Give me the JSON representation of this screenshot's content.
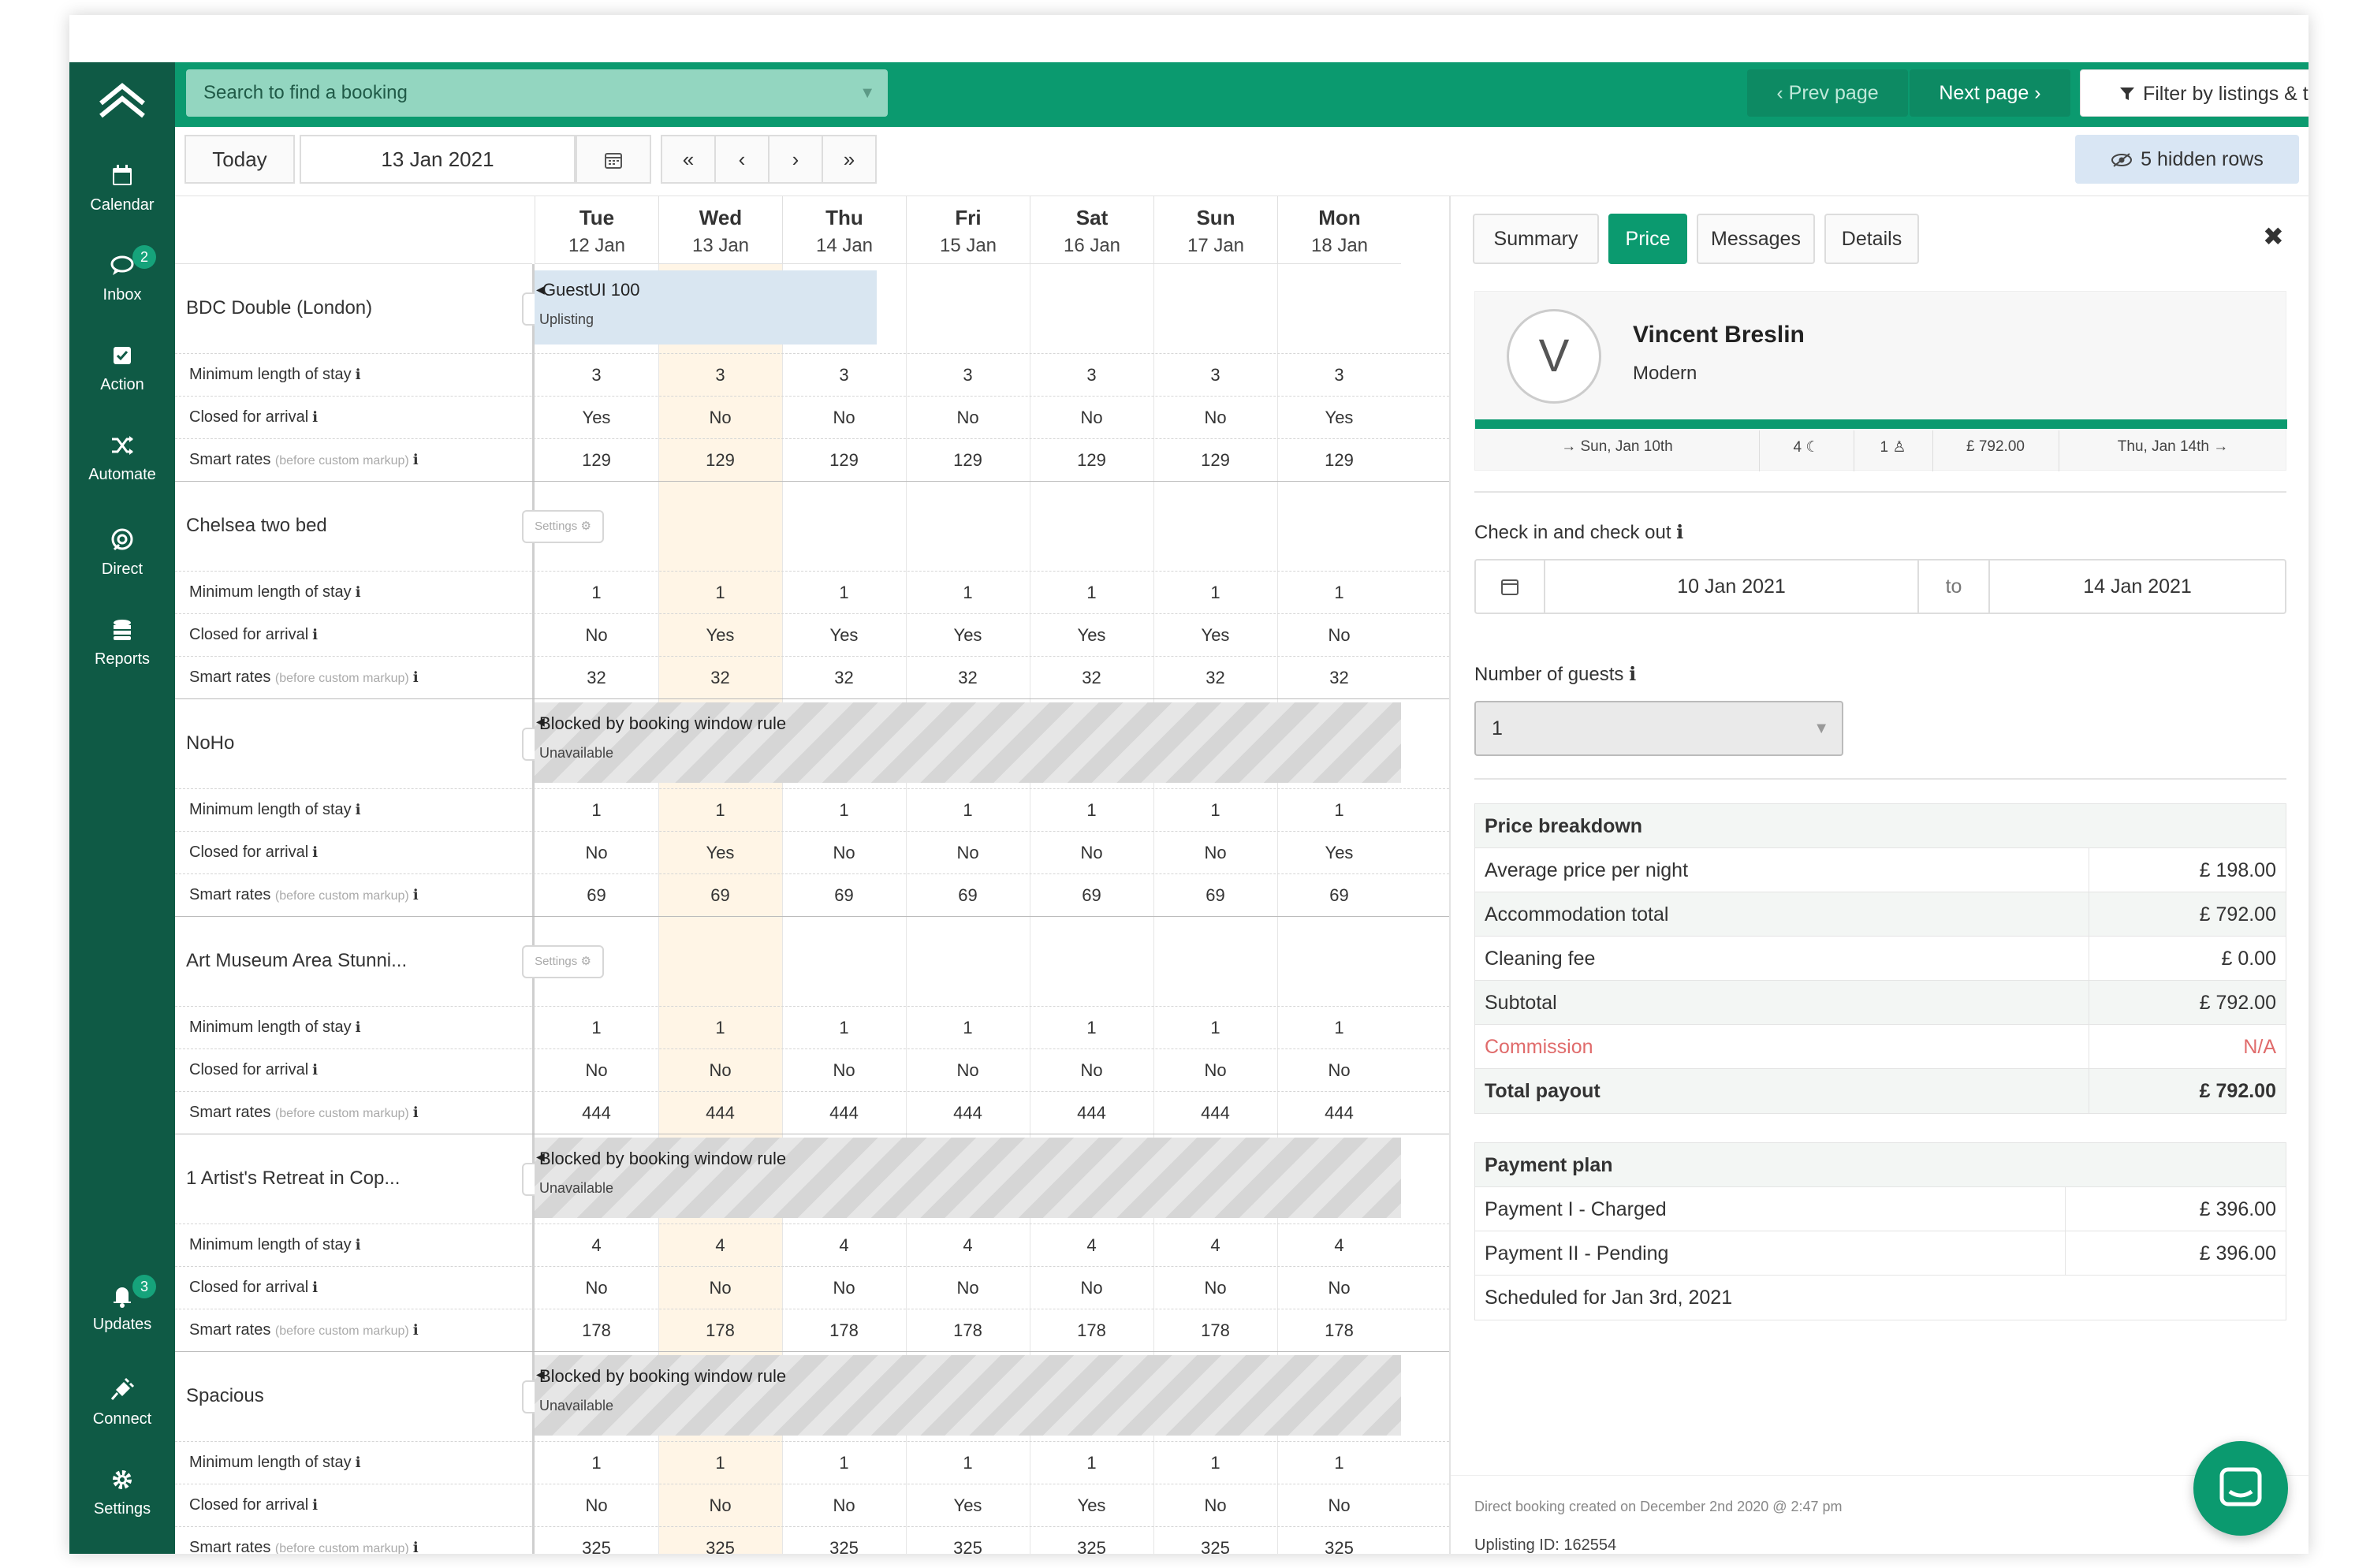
{
  "sidebar": {
    "items": [
      {
        "label": "Calendar",
        "icon": "calendar-icon"
      },
      {
        "label": "Inbox",
        "icon": "chat-icon",
        "badge": "2"
      },
      {
        "label": "Action",
        "icon": "checkbox-icon"
      },
      {
        "label": "Automate",
        "icon": "shuffle-icon"
      },
      {
        "label": "Direct",
        "icon": "direct-icon"
      },
      {
        "label": "Reports",
        "icon": "database-icon"
      },
      {
        "label": "Updates",
        "icon": "bell-icon",
        "badge": "3"
      },
      {
        "label": "Connect",
        "icon": "plug-icon"
      },
      {
        "label": "Settings",
        "icon": "gear-icon"
      }
    ]
  },
  "header": {
    "search_placeholder": "Search to find a booking",
    "prev_label": "Prev page",
    "next_label": "Next page",
    "filter_label": "Filter by listings & tags"
  },
  "toolbar": {
    "today_label": "Today",
    "date_value": "13 Jan 2021",
    "nav": [
      "«",
      "‹",
      "›",
      "»"
    ],
    "hidden_rows_label": "5 hidden rows",
    "more_label": "•••"
  },
  "calendar": {
    "days": [
      {
        "name": "Tue",
        "date": "12 Jan"
      },
      {
        "name": "Wed",
        "date": "13 Jan"
      },
      {
        "name": "Thu",
        "date": "14 Jan"
      },
      {
        "name": "Fri",
        "date": "15 Jan"
      },
      {
        "name": "Sat",
        "date": "16 Jan"
      },
      {
        "name": "Sun",
        "date": "17 Jan"
      },
      {
        "name": "Mon",
        "date": "18 Jan"
      }
    ],
    "settings_label": "Settings ⚙",
    "row_labels": {
      "min_stay": "Minimum length of stay",
      "closed": "Closed for arrival",
      "smart": "Smart rates",
      "smart_note": "(before custom markup)"
    },
    "listings": [
      {
        "name": "BDC Double (London)",
        "block": {
          "kind": "booking",
          "title": "GuestUI 100",
          "sub": "Uplisting"
        },
        "min_stay": [
          "3",
          "3",
          "3",
          "3",
          "3",
          "3",
          "3"
        ],
        "closed": [
          "Yes",
          "No",
          "No",
          "No",
          "No",
          "No",
          "Yes"
        ],
        "smart": [
          "129",
          "129",
          "129",
          "129",
          "129",
          "129",
          "129"
        ]
      },
      {
        "name": "Chelsea two bed",
        "block": null,
        "min_stay": [
          "1",
          "1",
          "1",
          "1",
          "1",
          "1",
          "1"
        ],
        "closed": [
          "No",
          "Yes",
          "Yes",
          "Yes",
          "Yes",
          "Yes",
          "No"
        ],
        "smart": [
          "32",
          "32",
          "32",
          "32",
          "32",
          "32",
          "32"
        ]
      },
      {
        "name": "NoHo",
        "block": {
          "kind": "blocked",
          "title": "Blocked by booking window rule",
          "sub": "Unavailable"
        },
        "min_stay": [
          "1",
          "1",
          "1",
          "1",
          "1",
          "1",
          "1"
        ],
        "closed": [
          "No",
          "Yes",
          "No",
          "No",
          "No",
          "No",
          "Yes"
        ],
        "smart": [
          "69",
          "69",
          "69",
          "69",
          "69",
          "69",
          "69"
        ]
      },
      {
        "name": "Art Museum Area Stunni...",
        "block": null,
        "min_stay": [
          "1",
          "1",
          "1",
          "1",
          "1",
          "1",
          "1"
        ],
        "closed": [
          "No",
          "No",
          "No",
          "No",
          "No",
          "No",
          "No"
        ],
        "smart": [
          "444",
          "444",
          "444",
          "444",
          "444",
          "444",
          "444"
        ]
      },
      {
        "name": "1 Artist's Retreat in Cop...",
        "block": {
          "kind": "blocked",
          "title": "Blocked by booking window rule",
          "sub": "Unavailable"
        },
        "min_stay": [
          "4",
          "4",
          "4",
          "4",
          "4",
          "4",
          "4"
        ],
        "closed": [
          "No",
          "No",
          "No",
          "No",
          "No",
          "No",
          "No"
        ],
        "smart": [
          "178",
          "178",
          "178",
          "178",
          "178",
          "178",
          "178"
        ]
      },
      {
        "name": "Spacious",
        "block": {
          "kind": "blocked",
          "title": "Blocked by booking window rule",
          "sub": "Unavailable"
        },
        "min_stay": [
          "1",
          "1",
          "1",
          "1",
          "1",
          "1",
          "1"
        ],
        "closed": [
          "No",
          "No",
          "No",
          "Yes",
          "Yes",
          "No",
          "No"
        ],
        "smart": [
          "325",
          "325",
          "325",
          "325",
          "325",
          "325",
          "325"
        ]
      }
    ]
  },
  "panel": {
    "tabs": [
      "Summary",
      "Price",
      "Messages",
      "Details"
    ],
    "active_tab": "Price",
    "guest": {
      "initial": "V",
      "name": "Vincent Breslin",
      "listing": "Modern",
      "checkin": "→ Sun, Jan 10th",
      "nights": "4 ☾",
      "guests": "1 ♙",
      "total": "£ 792.00",
      "checkout": "Thu, Jan 14th →"
    },
    "checkin_label": "Check in and check out",
    "checkin_date": "10 Jan 2021",
    "to_label": "to",
    "checkout_date": "14 Jan 2021",
    "guests_label": "Number of guests",
    "guests_value": "1",
    "price_breakdown": {
      "title": "Price breakdown",
      "rows": [
        {
          "label": "Average price per night",
          "value": "£ 198.00"
        },
        {
          "label": "Accommodation total",
          "value": "£ 792.00"
        },
        {
          "label": "Cleaning fee",
          "value": "£ 0.00"
        },
        {
          "label": "Subtotal",
          "value": "£ 792.00"
        },
        {
          "label": "Commission",
          "value": "N/A"
        },
        {
          "label": "Total payout",
          "value": "£ 792.00"
        }
      ]
    },
    "payment_plan": {
      "title": "Payment plan",
      "rows": [
        {
          "label": "Payment I - Charged",
          "value": "£ 396.00"
        },
        {
          "label": "Payment II - Pending",
          "value": "£ 396.00"
        }
      ],
      "scheduled": "Scheduled for Jan 3rd, 2021"
    },
    "footer_note": "Direct booking created on December 2nd 2020 @ 2:47 pm",
    "uplisting_id": "Uplisting ID: 162554"
  },
  "colors": {
    "sidebar": "#0f5a45",
    "header": "#0b9a6f",
    "accent": "#0b9a6f",
    "highlight_col": "#fff5e6",
    "booking": "#d9e6f1",
    "commission": "#e06b6b"
  }
}
